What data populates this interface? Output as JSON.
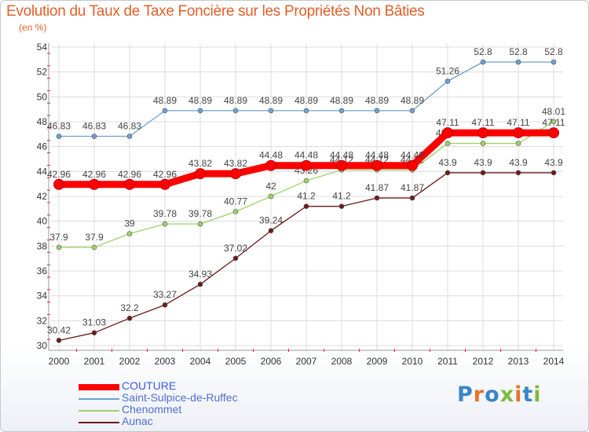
{
  "chart_data": {
    "type": "line",
    "title": "Evolution du Taux de Taxe Foncière sur les Propriétés Non Bâties",
    "ylabel": "(en %)",
    "xlabel": "",
    "ylim": [
      30,
      54
    ],
    "yticks": [
      "30",
      "32",
      "34",
      "36",
      "38",
      "40",
      "42",
      "44",
      "46",
      "48",
      "50",
      "52",
      "54"
    ],
    "categories": [
      "2000",
      "2001",
      "2002",
      "2003",
      "2004",
      "2005",
      "2006",
      "2007",
      "2008",
      "2009",
      "2010",
      "2011",
      "2012",
      "2013",
      "2014"
    ],
    "grid": true,
    "series": [
      {
        "name": "Saint-Sulpice-de-Ruffec",
        "color": "#6fa0cf",
        "values": [
          46.83,
          46.83,
          46.83,
          48.89,
          48.89,
          48.89,
          48.89,
          48.89,
          48.89,
          48.89,
          48.89,
          51.26,
          52.8,
          52.8,
          52.8
        ],
        "labels": [
          "46.83",
          "46.83",
          "46.83",
          "48.89",
          "48.89",
          "48.89",
          "48.89",
          "48.89",
          "48.89",
          "48.89",
          "48.89",
          "51.26",
          "52.8",
          "52.8",
          "52.8"
        ]
      },
      {
        "name": "Aunac",
        "color": "#6b1a1a",
        "values": [
          30.42,
          31.03,
          32.2,
          33.27,
          34.93,
          37.02,
          39.24,
          41.2,
          41.2,
          41.87,
          41.87,
          43.9,
          43.9,
          43.9,
          43.9
        ],
        "labels": [
          "30.42",
          "31.03",
          "32.2",
          "33.27",
          "34.93",
          "37.02",
          "39.24",
          "41.2",
          "41.2",
          "41.87",
          "41.87",
          "43.9",
          "43.9",
          "43.9",
          "43.9"
        ]
      },
      {
        "name": "Chenommet",
        "color": "#9ed26a",
        "values": [
          37.9,
          37.9,
          39,
          39.78,
          39.78,
          40.77,
          42,
          43.26,
          44.12,
          44.12,
          44.12,
          46.26,
          46.26,
          46.26,
          48.01
        ],
        "labels": [
          "37.9",
          "37.9",
          "39",
          "39.78",
          "39.78",
          "40.77",
          "42",
          "43.26",
          "44.12",
          "44.12",
          "44.12",
          "46.26",
          "46.26",
          "46.26",
          "48.01"
        ]
      },
      {
        "name": "COUTURE",
        "color": "#ff0000",
        "values": [
          42.96,
          42.96,
          42.96,
          42.96,
          43.82,
          43.82,
          44.48,
          44.48,
          44.48,
          44.48,
          44.48,
          47.11,
          47.11,
          47.11,
          47.11
        ],
        "labels": [
          "42.96",
          "42.96",
          "42.96",
          "42.96",
          "43.82",
          "43.82",
          "44.48",
          "44.48",
          "44.48",
          "44.48",
          "44.48",
          "47.11",
          "47.11",
          "47.11",
          "47.11"
        ]
      }
    ],
    "legend": [
      {
        "name": "COUTURE",
        "color": "#ff0000"
      },
      {
        "name": "Saint-Sulpice-de-Ruffec",
        "color": "#6fa0cf"
      },
      {
        "name": "Chenommet",
        "color": "#9ed26a"
      },
      {
        "name": "Aunac",
        "color": "#6b1a1a"
      }
    ],
    "legend_position": "bottom-left"
  },
  "brand": {
    "text": "Proxiti",
    "colors": [
      "#3a86c8",
      "#e8732a",
      "#3a86c8",
      "#7dbb3a",
      "#e8732a",
      "#3a86c8",
      "#7dbb3a"
    ]
  }
}
